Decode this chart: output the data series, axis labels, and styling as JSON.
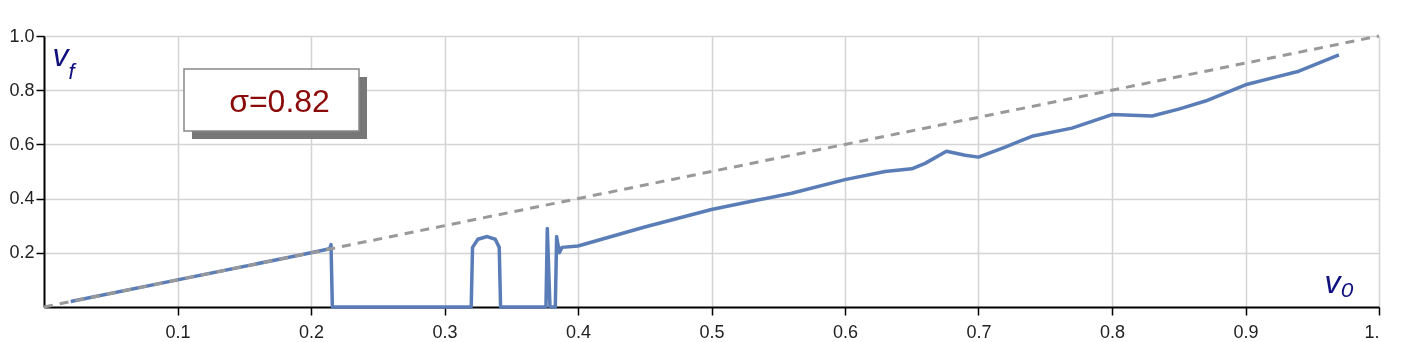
{
  "chart_data": {
    "type": "line",
    "xlabel": "v₀",
    "ylabel": "v$_{f}$",
    "annotations": [
      "σ=0.82"
    ],
    "series": [
      {
        "color": "#5a7db8",
        "x": [
          0.02,
          0.1,
          0.2,
          0.214,
          0.215,
          0.216,
          0.32,
          0.321,
          0.325,
          0.332,
          0.338,
          0.341,
          0.342,
          0.376,
          0.377,
          0.379,
          0.383,
          0.384,
          0.386,
          0.388,
          0.4,
          0.45,
          0.5,
          0.53,
          0.56,
          0.6,
          0.63,
          0.65,
          0.66,
          0.676,
          0.69,
          0.7,
          0.72,
          0.74,
          0.77,
          0.8,
          0.83,
          0.85,
          0.87,
          0.9,
          0.94,
          0.97
        ],
        "values": [
          0.02,
          0.1,
          0.2,
          0.215,
          0.23,
          0,
          0,
          0.22,
          0.25,
          0.26,
          0.25,
          0.22,
          0,
          0,
          0.29,
          0,
          0,
          0.26,
          0.2,
          0.22,
          0.225,
          0.295,
          0.36,
          0.39,
          0.42,
          0.47,
          0.5,
          0.51,
          0.53,
          0.575,
          0.56,
          0.553,
          0.59,
          0.63,
          0.66,
          0.71,
          0.705,
          0.73,
          0.76,
          0.82,
          0.87,
          0.93
        ]
      },
      {
        "color": "#999999",
        "line_style": "dashed",
        "x": [
          0,
          1
        ],
        "values": [
          0,
          1
        ]
      }
    ],
    "xlim": [
      0,
      1
    ],
    "ylim": [
      0,
      1
    ],
    "xticks": [
      0.1,
      0.2,
      0.3,
      0.4,
      0.5,
      0.6,
      0.7,
      0.8,
      0.9,
      {
        "value": 1,
        "label": "1."
      }
    ],
    "yticks": [
      0.2,
      0.4,
      0.6,
      0.8,
      {
        "value": 1,
        "label": "1.0"
      }
    ],
    "grid": true,
    "marker": "none"
  }
}
